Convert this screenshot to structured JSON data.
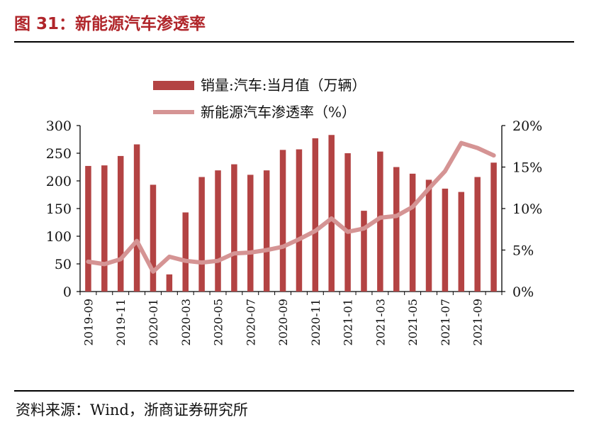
{
  "title": "图 31：新能源汽车渗透率",
  "source": "资料来源：Wind，浙商证券研究所",
  "colors": {
    "title": "#b0252a",
    "bars": "#b34343",
    "line": "#d59494"
  },
  "chart_data": {
    "type": "bar+line",
    "categories": [
      "2019-09",
      "2019-10",
      "2019-11",
      "2019-12",
      "2020-01",
      "2020-02",
      "2020-03",
      "2020-04",
      "2020-05",
      "2020-06",
      "2020-07",
      "2020-08",
      "2020-09",
      "2020-10",
      "2020-11",
      "2020-12",
      "2021-01",
      "2021-02",
      "2021-03",
      "2021-04",
      "2021-05",
      "2021-06",
      "2021-07",
      "2021-08",
      "2021-09",
      "2021-10"
    ],
    "x_tick_labels": [
      "2019-09",
      "2019-11",
      "2020-01",
      "2020-03",
      "2020-05",
      "2020-07",
      "2020-09",
      "2020-11",
      "2021-01",
      "2021-03",
      "2021-05",
      "2021-07",
      "2021-09"
    ],
    "series": [
      {
        "name": "销量:汽车:当月值（万辆）",
        "type": "bar",
        "axis": "left",
        "values": [
          227,
          228,
          245,
          266,
          193,
          31,
          143,
          207,
          219,
          230,
          211,
          219,
          256,
          257,
          277,
          283,
          250,
          146,
          253,
          225,
          213,
          202,
          186,
          180,
          207,
          233
        ]
      },
      {
        "name": "新能源汽车渗透率（%）",
        "type": "line",
        "axis": "right",
        "values": [
          3.6,
          3.3,
          3.9,
          6.1,
          2.4,
          4.2,
          3.7,
          3.5,
          3.7,
          4.6,
          4.7,
          5.0,
          5.4,
          6.3,
          7.3,
          8.8,
          7.2,
          7.6,
          8.9,
          9.1,
          10.2,
          12.4,
          14.5,
          17.9,
          17.3,
          16.4
        ]
      }
    ],
    "y_left": {
      "ylim": [
        0,
        300
      ],
      "ticks": [
        "0",
        "50",
        "100",
        "150",
        "200",
        "250",
        "300"
      ]
    },
    "y_right": {
      "ylim": [
        0,
        20
      ],
      "ticks": [
        "0%",
        "5%",
        "10%",
        "15%",
        "20%"
      ]
    },
    "legend_position": "top"
  }
}
